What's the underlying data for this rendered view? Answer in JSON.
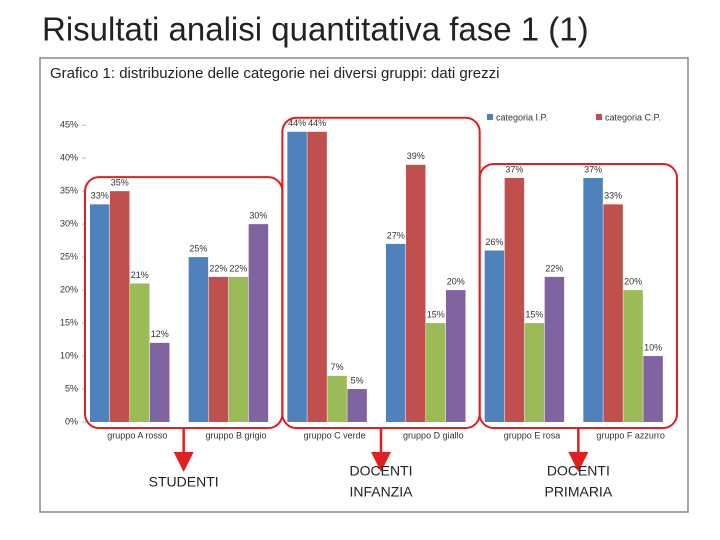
{
  "title": "Risultati analisi quantitativa fase 1 (1)",
  "chart_data": {
    "type": "bar",
    "title": "Grafico 1: distribuzione delle categorie nei diversi gruppi: dati grezzi",
    "categories": [
      "gruppo A rosso",
      "gruppo B grigio",
      "gruppo C verde",
      "gruppo D giallo",
      "gruppo E rosa",
      "gruppo F azzurro"
    ],
    "series": [
      {
        "name": "categoria I.P.",
        "color": "#4f81bd",
        "values": [
          33,
          25,
          44,
          27,
          26,
          37
        ],
        "value_labels": [
          "33%",
          "25%",
          "44%",
          "27%",
          "26%",
          "37%"
        ]
      },
      {
        "name": "categoria C.P.",
        "color": "#c0504d",
        "values": [
          35,
          22,
          44,
          39,
          37,
          33
        ],
        "value_labels": [
          "35%",
          "22%",
          "44%",
          "39%",
          "37%",
          "33%"
        ]
      },
      {
        "color": "#9bbb59",
        "values": [
          21,
          22,
          7,
          15,
          15,
          20
        ],
        "value_labels": [
          "21%",
          "22%",
          "7%",
          "15%",
          "15%",
          "20%"
        ]
      },
      {
        "color": "#8064a2",
        "values": [
          12,
          30,
          5,
          20,
          22,
          10
        ],
        "value_labels": [
          "12%",
          "30%",
          "5%",
          "20%",
          "22%",
          "10%"
        ]
      }
    ],
    "ylim": [
      0,
      47
    ],
    "yticks": [
      {
        "value": 0,
        "label": "0%"
      },
      {
        "value": 5,
        "label": "5%"
      },
      {
        "value": 10,
        "label": "10%"
      },
      {
        "value": 15,
        "label": "15%"
      },
      {
        "value": 20,
        "label": "20%"
      },
      {
        "value": 25,
        "label": "25%"
      },
      {
        "value": 30,
        "label": "30%"
      },
      {
        "value": 35,
        "label": "35%"
      },
      {
        "value": 40,
        "label": "40%"
      },
      {
        "value": 45,
        "label": "45%"
      }
    ],
    "grid": false,
    "legend": "top-right",
    "annotations": [
      [
        "STUDENTI"
      ],
      [
        "DOCENTI",
        "INFANZIA"
      ],
      [
        "DOCENTI",
        "PRIMARIA"
      ]
    ],
    "annotation_color": "#e02020"
  }
}
